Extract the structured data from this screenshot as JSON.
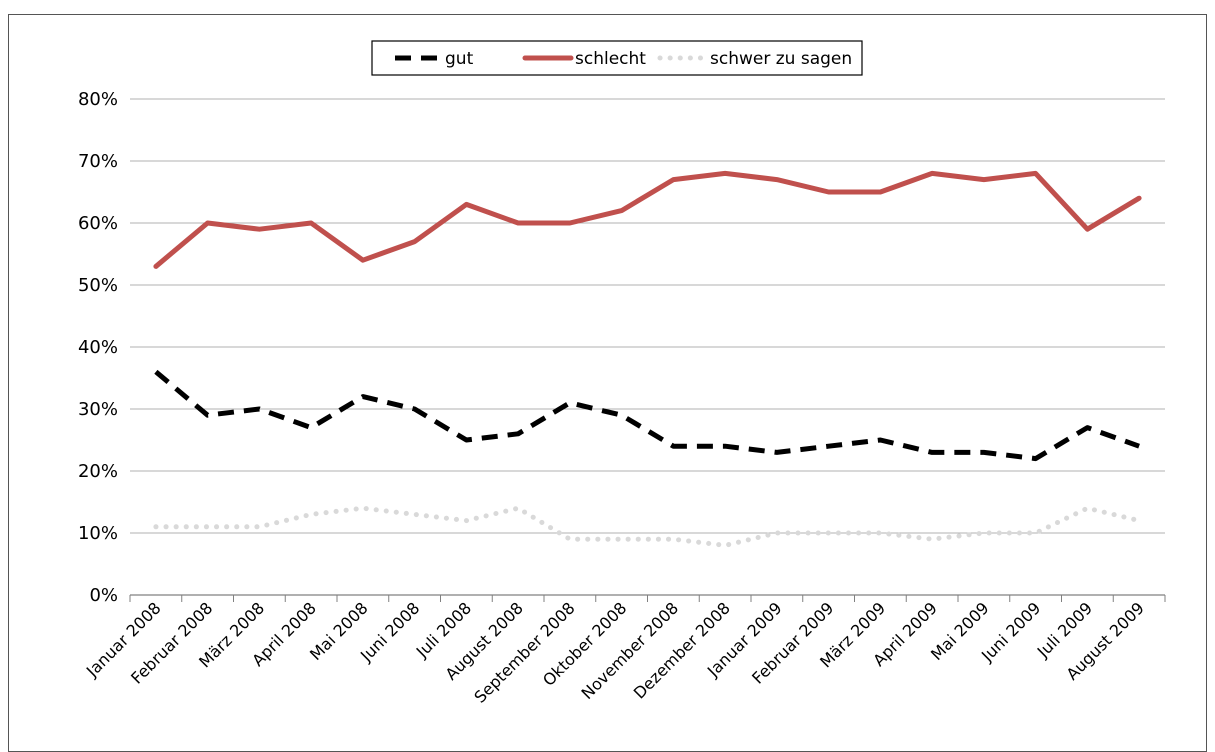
{
  "chart_data": {
    "type": "line",
    "title": "",
    "xlabel": "",
    "ylabel": "",
    "ylim": [
      0,
      80
    ],
    "ytick_labels": [
      "0%",
      "10%",
      "20%",
      "30%",
      "40%",
      "50%",
      "60%",
      "70%",
      "80%"
    ],
    "grid": true,
    "legend_position": "top",
    "categories": [
      "Januar 2008",
      "Februar 2008",
      "März 2008",
      "April 2008",
      "Mai 2008",
      "Juni 2008",
      "Juli 2008",
      "August 2008",
      "September 2008",
      "Oktober 2008",
      "November 2008",
      "Dezember 2008",
      "Januar 2009",
      "Februar 2009",
      "März 2009",
      "April 2009",
      "Mai 2009",
      "Juni 2009",
      "Juli 2009",
      "August 2009"
    ],
    "series": [
      {
        "name": "gut",
        "color": "#000000",
        "style": "dashed",
        "values": [
          36,
          29,
          30,
          27,
          32,
          30,
          25,
          26,
          31,
          29,
          24,
          24,
          23,
          24,
          25,
          23,
          23,
          22,
          27,
          24
        ]
      },
      {
        "name": "schlecht",
        "color": "#c0504d",
        "style": "solid",
        "values": [
          53,
          60,
          59,
          60,
          54,
          57,
          63,
          60,
          60,
          62,
          67,
          68,
          67,
          65,
          65,
          68,
          67,
          68,
          59,
          64
        ]
      },
      {
        "name": "schwer zu sagen",
        "color": "#d9d9d9",
        "style": "dotted",
        "values": [
          11,
          11,
          11,
          13,
          14,
          13,
          12,
          14,
          9,
          9,
          9,
          8,
          10,
          10,
          10,
          9,
          10,
          10,
          14,
          12
        ]
      }
    ]
  }
}
